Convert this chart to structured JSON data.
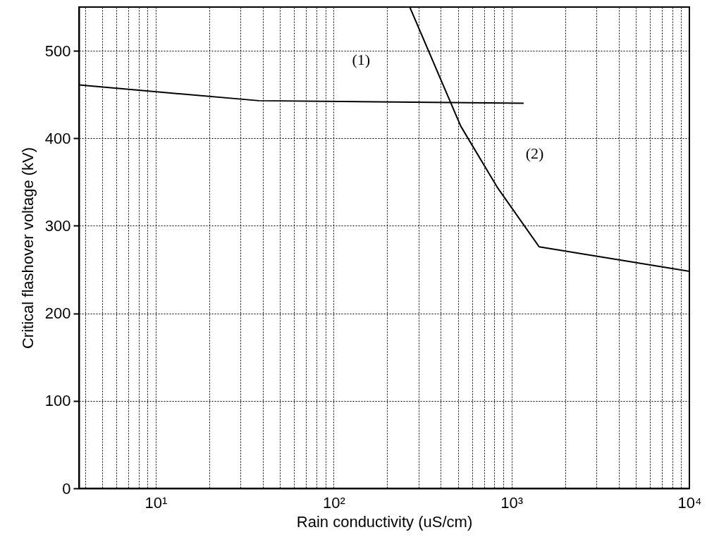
{
  "chart_data": {
    "type": "line",
    "xlabel": "Rain conductivity (uS/cm)",
    "ylabel": "Critical flashover voltage (kV)",
    "log": "x",
    "grid": true,
    "marker": "none",
    "line_style": "solid",
    "xlim": [
      3.7,
      10000
    ],
    "ylim": [
      0,
      550
    ],
    "xticks": [
      {
        "value": 4,
        "label": null
      },
      {
        "value": 5,
        "label": null
      },
      {
        "value": 6,
        "label": null
      },
      {
        "value": 7,
        "label": null
      },
      {
        "value": 8,
        "label": null
      },
      {
        "value": 9,
        "label": null
      },
      {
        "value": 10,
        "label": "10¹"
      },
      {
        "value": 20,
        "label": null
      },
      {
        "value": 30,
        "label": null
      },
      {
        "value": 40,
        "label": null
      },
      {
        "value": 50,
        "label": null
      },
      {
        "value": 60,
        "label": null
      },
      {
        "value": 70,
        "label": null
      },
      {
        "value": 80,
        "label": null
      },
      {
        "value": 90,
        "label": null
      },
      {
        "value": 100,
        "label": "10²"
      },
      {
        "value": 200,
        "label": null
      },
      {
        "value": 300,
        "label": null
      },
      {
        "value": 400,
        "label": null
      },
      {
        "value": 500,
        "label": null
      },
      {
        "value": 600,
        "label": null
      },
      {
        "value": 700,
        "label": null
      },
      {
        "value": 800,
        "label": null
      },
      {
        "value": 900,
        "label": null
      },
      {
        "value": 1000,
        "label": "10³"
      },
      {
        "value": 2000,
        "label": null
      },
      {
        "value": 3000,
        "label": null
      },
      {
        "value": 4000,
        "label": null
      },
      {
        "value": 5000,
        "label": null
      },
      {
        "value": 6000,
        "label": null
      },
      {
        "value": 7000,
        "label": null
      },
      {
        "value": 8000,
        "label": null
      },
      {
        "value": 9000,
        "label": null
      },
      {
        "value": 10000,
        "label": "10⁴"
      }
    ],
    "yticks": [
      0,
      100,
      200,
      300,
      400,
      500
    ],
    "series": [
      {
        "name": "(1)",
        "color": "#000000",
        "x": [
          3.7,
          38,
          1170
        ],
        "values": [
          461,
          443,
          440
        ]
      },
      {
        "name": "(2)",
        "color": "#000000",
        "x": [
          268,
          518,
          832,
          1430,
          10000
        ],
        "values": [
          550,
          414,
          344,
          276,
          248
        ]
      }
    ]
  }
}
